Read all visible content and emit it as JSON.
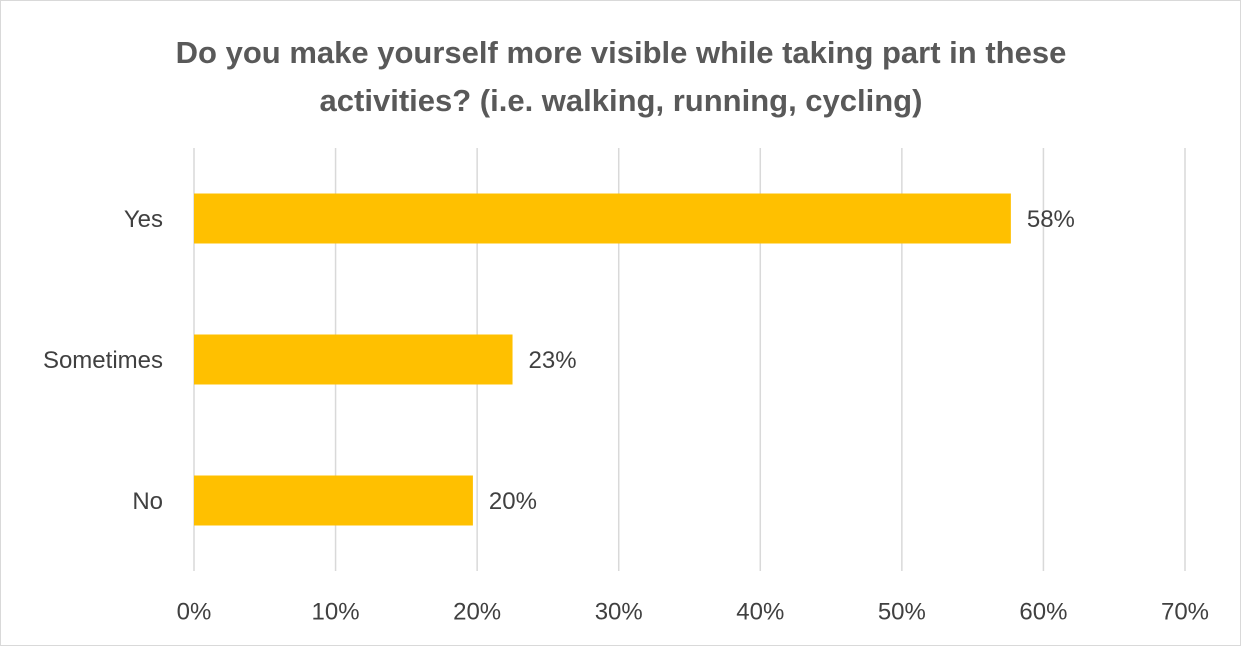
{
  "chart_data": {
    "type": "hbar",
    "title": "Do you make yourself more visible while taking part in these activities? (i.e. walking, running, cycling)",
    "categories": [
      "Yes",
      "Sometimes",
      "No"
    ],
    "values": [
      57.7,
      22.5,
      19.7
    ],
    "value_labels": [
      "58%",
      "23%",
      "20%"
    ],
    "color": "#ffc000",
    "xlim": [
      0,
      70
    ],
    "xticks": [
      {
        "value": 0,
        "label": "0%"
      },
      {
        "value": 10,
        "label": "10%"
      },
      {
        "value": 20,
        "label": "20%"
      },
      {
        "value": 30,
        "label": "30%"
      },
      {
        "value": 40,
        "label": "40%"
      },
      {
        "value": 50,
        "label": "50%"
      },
      {
        "value": 60,
        "label": "60%"
      },
      {
        "value": 70,
        "label": "70%"
      }
    ],
    "grid": true
  }
}
